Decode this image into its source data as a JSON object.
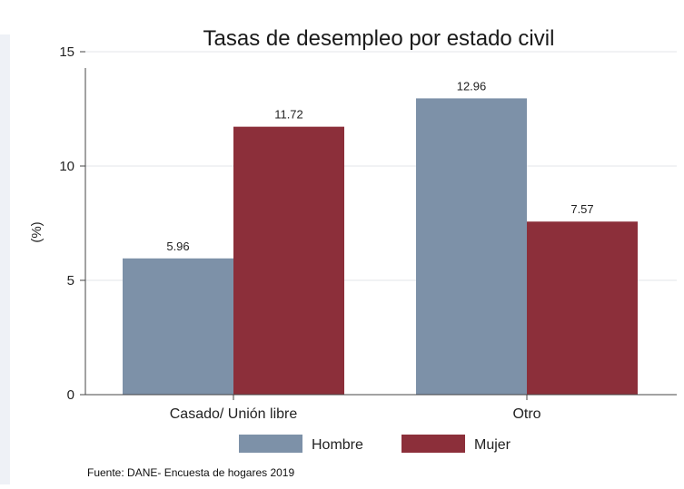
{
  "chart_data": {
    "type": "bar",
    "title": "Tasas de desempleo por estado civil",
    "ylabel": "(%)",
    "xlabel": "",
    "categories": [
      "Casado/ Unión libre",
      "Otro"
    ],
    "series": [
      {
        "name": "Hombre",
        "values": [
          5.96,
          12.96
        ],
        "labels": [
          "5.96",
          "12.96"
        ],
        "color": "#7d91a8"
      },
      {
        "name": "Mujer",
        "values": [
          11.72,
          7.57
        ],
        "labels": [
          "11.72",
          "7.57"
        ],
        "color": "#8c2f3a"
      }
    ],
    "ylim": [
      0,
      15
    ],
    "yticks": [
      0,
      5,
      10,
      15
    ],
    "grid": true,
    "legend": "bottom"
  },
  "source_note": "Fuente: DANE- Encuesta de hogares 2019"
}
